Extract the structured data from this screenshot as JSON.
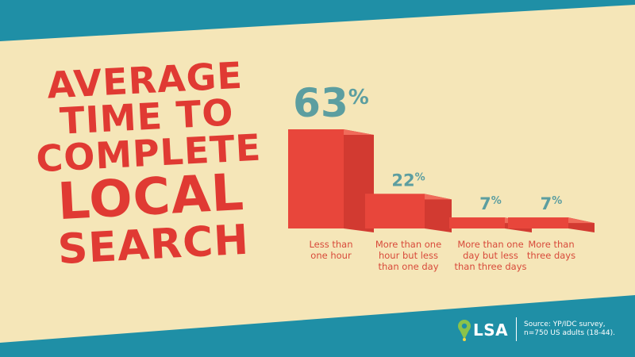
{
  "title": {
    "lines": [
      "AVERAGE",
      "TIME TO",
      "COMPLETE",
      "LOCAL",
      "SEARCH"
    ]
  },
  "colors": {
    "background": "#f5e6b8",
    "band": "#1f8fa6",
    "bar_front": "#e8463b",
    "bar_side": "#d23a31",
    "bar_top": "#f06b5a",
    "value_text": "#5c9ea0",
    "title_text": "#e03a33",
    "label_text": "#d84a3a"
  },
  "chart_data": {
    "type": "bar",
    "categories": [
      [
        "Less than",
        "one hour"
      ],
      [
        "More than one",
        "hour but less",
        "than one day"
      ],
      [
        "More than one",
        "day but less",
        "than three days"
      ],
      [
        "More than",
        "three days"
      ]
    ],
    "values": [
      63,
      22,
      7,
      7
    ],
    "value_unit": "%",
    "title": "AVERAGE TIME TO COMPLETE LOCAL SEARCH",
    "xlabel": "",
    "ylabel": "",
    "ylim": [
      0,
      63
    ],
    "grid": false,
    "legend": "none"
  },
  "footer": {
    "brand": "LSA",
    "logo_icon": "map-pin-icon",
    "source_lines": [
      "Source: YP/IDC survey,",
      "n=750 US adults (18-44)."
    ]
  }
}
